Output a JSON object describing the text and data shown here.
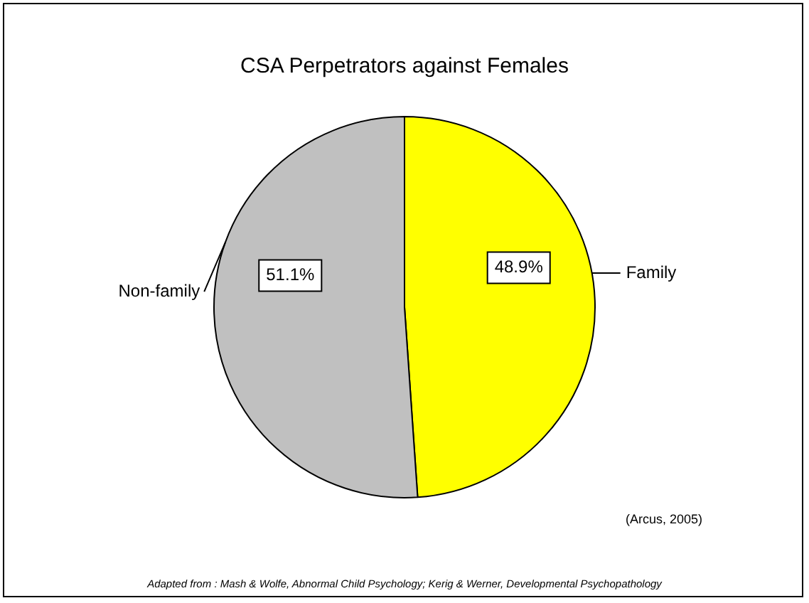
{
  "chart_data": {
    "type": "pie",
    "title": "CSA Perpetrators against Females",
    "categories": [
      "Family",
      "Non-family"
    ],
    "values": [
      48.9,
      51.1
    ],
    "colors": [
      "#ffff00",
      "#c0c0c0"
    ],
    "value_labels": [
      "48.9%",
      "51.1%"
    ],
    "legend": false,
    "annotations": [
      "(Arcus, 2005)",
      "Adapted from : Mash & Wolfe, Abnormal Child Psychology; Kerig & Werner, Developmental Psychopathology"
    ]
  }
}
